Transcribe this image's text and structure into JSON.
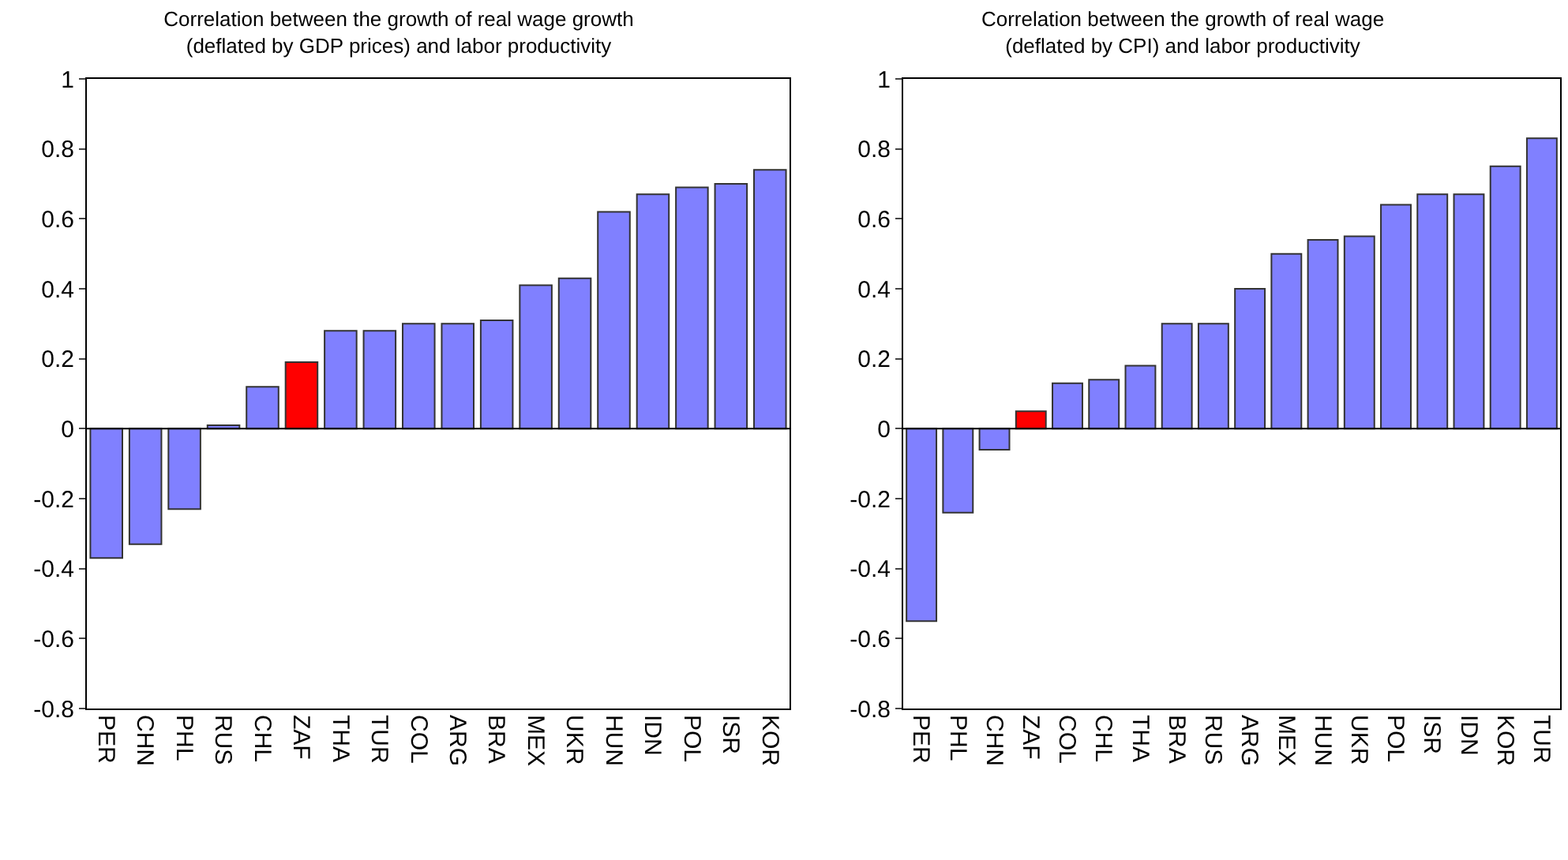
{
  "chart_data": [
    {
      "type": "bar",
      "title": "Correlation between the growth of real wage growth\n(deflated by GDP prices) and labor productivity",
      "categories": [
        "PER",
        "CHN",
        "PHL",
        "RUS",
        "CHL",
        "ZAF",
        "THA",
        "TUR",
        "COL",
        "ARG",
        "BRA",
        "MEX",
        "UKR",
        "HUN",
        "IDN",
        "POL",
        "ISR",
        "KOR"
      ],
      "values": [
        -0.37,
        -0.33,
        -0.23,
        0.01,
        0.12,
        0.19,
        0.28,
        0.28,
        0.3,
        0.3,
        0.31,
        0.41,
        0.43,
        0.62,
        0.67,
        0.69,
        0.7,
        0.74
      ],
      "colors": [
        "#8080ff",
        "#8080ff",
        "#8080ff",
        "#8080ff",
        "#8080ff",
        "#ff0000",
        "#8080ff",
        "#8080ff",
        "#8080ff",
        "#8080ff",
        "#8080ff",
        "#8080ff",
        "#8080ff",
        "#8080ff",
        "#8080ff",
        "#8080ff",
        "#8080ff",
        "#8080ff"
      ],
      "ylim": [
        -0.8,
        1
      ],
      "yticks": [
        -0.8,
        -0.6,
        -0.4,
        -0.2,
        0,
        0.2,
        0.4,
        0.6,
        0.8,
        1
      ]
    },
    {
      "type": "bar",
      "title": "Correlation between the growth of real wage\n(deflated by CPI) and labor productivity",
      "categories": [
        "PER",
        "PHL",
        "CHN",
        "ZAF",
        "COL",
        "CHL",
        "THA",
        "BRA",
        "RUS",
        "ARG",
        "MEX",
        "HUN",
        "UKR",
        "POL",
        "ISR",
        "IDN",
        "KOR",
        "TUR"
      ],
      "values": [
        -0.55,
        -0.24,
        -0.06,
        0.05,
        0.13,
        0.14,
        0.18,
        0.3,
        0.3,
        0.4,
        0.5,
        0.54,
        0.55,
        0.64,
        0.67,
        0.67,
        0.75,
        0.83
      ],
      "colors": [
        "#8080ff",
        "#8080ff",
        "#8080ff",
        "#ff0000",
        "#8080ff",
        "#8080ff",
        "#8080ff",
        "#8080ff",
        "#8080ff",
        "#8080ff",
        "#8080ff",
        "#8080ff",
        "#8080ff",
        "#8080ff",
        "#8080ff",
        "#8080ff",
        "#8080ff",
        "#8080ff"
      ],
      "ylim": [
        -0.8,
        1
      ],
      "yticks": [
        -0.8,
        -0.6,
        -0.4,
        -0.2,
        0,
        0.2,
        0.4,
        0.6,
        0.8,
        1
      ]
    }
  ]
}
